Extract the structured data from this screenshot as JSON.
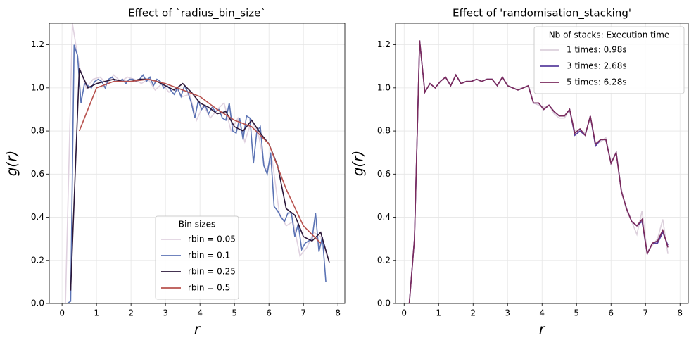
{
  "chart_data": [
    {
      "type": "line",
      "title": "Effect of `radius_bin_size`",
      "xlabel": "r",
      "ylabel": "g(r)",
      "xlim": [
        -0.37,
        8.2
      ],
      "ylim": [
        0,
        1.3
      ],
      "xticks": [
        0,
        1,
        2,
        3,
        4,
        5,
        6,
        7,
        8
      ],
      "yticks": [
        {
          "value": 0,
          "label": "0.0"
        },
        0.2,
        0.4,
        0.6,
        0.8,
        {
          "value": 1,
          "label": "1.0"
        },
        1.2
      ],
      "grid": true,
      "legend_title": "Bin sizes",
      "legend_loc": "lower center",
      "series": [
        {
          "name": "rbin = 0.05",
          "color": "#e0d2e0",
          "x": [
            0.1,
            0.3,
            0.5,
            0.7,
            0.9,
            1.1,
            1.3,
            1.5,
            1.7,
            1.9,
            2.1,
            2.3,
            2.5,
            2.7,
            2.9,
            3.1,
            3.3,
            3.5,
            3.7,
            3.9,
            4.1,
            4.3,
            4.5,
            4.7,
            4.9,
            5.1,
            5.3,
            5.5,
            5.7,
            5.9,
            6.1,
            6.3,
            6.5,
            6.7,
            6.9,
            7.1,
            7.3,
            7.5,
            7.7
          ],
          "values": [
            0,
            1.3,
            1.1,
            1.0,
            1.04,
            1.05,
            1.02,
            1.06,
            1.03,
            1.05,
            1.04,
            1.02,
            1.04,
            0.99,
            1.02,
            0.98,
            1.0,
            0.96,
            0.97,
            0.85,
            0.92,
            0.86,
            0.9,
            0.93,
            0.8,
            0.86,
            0.75,
            0.85,
            0.78,
            0.62,
            0.66,
            0.42,
            0.36,
            0.38,
            0.22,
            0.26,
            0.33,
            0.31,
            0.21
          ]
        },
        {
          "name": "rbin = 0.1",
          "color": "#5b73b4",
          "x": [
            0.05,
            0.15,
            0.25,
            0.35,
            0.45,
            0.55,
            0.65,
            0.75,
            0.85,
            0.95,
            1.05,
            1.15,
            1.25,
            1.35,
            1.45,
            1.55,
            1.65,
            1.75,
            1.85,
            1.95,
            2.05,
            2.15,
            2.25,
            2.35,
            2.45,
            2.55,
            2.65,
            2.75,
            2.85,
            2.95,
            3.05,
            3.15,
            3.25,
            3.35,
            3.45,
            3.55,
            3.65,
            3.75,
            3.85,
            3.95,
            4.05,
            4.15,
            4.25,
            4.35,
            4.45,
            4.55,
            4.65,
            4.75,
            4.85,
            4.95,
            5.05,
            5.15,
            5.25,
            5.35,
            5.45,
            5.55,
            5.65,
            5.75,
            5.85,
            5.95,
            6.05,
            6.15,
            6.25,
            6.35,
            6.45,
            6.55,
            6.65,
            6.75,
            6.85,
            6.95,
            7.05,
            7.15,
            7.25,
            7.35,
            7.45,
            7.55,
            7.65
          ],
          "values": [
            0,
            0,
            0.01,
            1.2,
            1.15,
            0.93,
            1.02,
            1.01,
            1.0,
            1.03,
            1.04,
            1.03,
            1.0,
            1.04,
            1.05,
            1.03,
            1.03,
            1.04,
            1.02,
            1.04,
            1.04,
            1.03,
            1.04,
            1.06,
            1.03,
            1.05,
            1.01,
            1.04,
            1.03,
            1.0,
            1.01,
            0.99,
            0.97,
            1.0,
            0.96,
            1.01,
            0.98,
            0.93,
            0.86,
            0.94,
            0.9,
            0.92,
            0.88,
            0.91,
            0.89,
            0.9,
            0.86,
            0.85,
            0.93,
            0.8,
            0.79,
            0.86,
            0.76,
            0.87,
            0.86,
            0.65,
            0.8,
            0.82,
            0.64,
            0.6,
            0.7,
            0.45,
            0.43,
            0.4,
            0.38,
            0.42,
            0.42,
            0.31,
            0.37,
            0.25,
            0.28,
            0.29,
            0.3,
            0.42,
            0.24,
            0.31,
            0.1
          ]
        },
        {
          "name": "rbin = 0.25",
          "color": "#2a1638",
          "x": [
            0.25,
            0.5,
            0.75,
            1.0,
            1.25,
            1.5,
            1.75,
            2.0,
            2.25,
            2.5,
            2.75,
            3.0,
            3.25,
            3.5,
            3.75,
            4.0,
            4.25,
            4.5,
            4.75,
            5.0,
            5.25,
            5.5,
            5.75,
            6.0,
            6.25,
            6.5,
            6.75,
            7.0,
            7.25,
            7.5,
            7.75
          ],
          "values": [
            0.06,
            1.09,
            1.0,
            1.02,
            1.03,
            1.04,
            1.03,
            1.03,
            1.04,
            1.04,
            1.03,
            1.01,
            0.99,
            1.02,
            0.98,
            0.93,
            0.91,
            0.88,
            0.89,
            0.82,
            0.8,
            0.85,
            0.79,
            0.74,
            0.64,
            0.44,
            0.41,
            0.31,
            0.29,
            0.33,
            0.19
          ]
        },
        {
          "name": "rbin = 0.5",
          "color": "#b8524e",
          "x": [
            0.5,
            1.0,
            1.5,
            2.0,
            2.5,
            3.0,
            3.5,
            4.0,
            4.5,
            5.0,
            5.5,
            6.0,
            6.5,
            7.0,
            7.5
          ],
          "values": [
            0.8,
            1.0,
            1.03,
            1.03,
            1.04,
            1.02,
            0.99,
            0.96,
            0.9,
            0.85,
            0.82,
            0.74,
            0.53,
            0.36,
            0.28
          ]
        }
      ]
    },
    {
      "type": "line",
      "title": "Effect of 'randomisation_stacking'",
      "xlabel": "r",
      "ylabel": "g(r)",
      "xlim": [
        -0.25,
        8.24
      ],
      "ylim": [
        0,
        1.3
      ],
      "xticks": [
        0,
        1,
        2,
        3,
        4,
        5,
        6,
        7,
        8
      ],
      "yticks": [
        {
          "value": 0,
          "label": "0.0"
        },
        0.2,
        0.4,
        0.6,
        0.8,
        {
          "value": 1,
          "label": "1.0"
        },
        1.2
      ],
      "grid": true,
      "legend_title": "Nb of stacks: Execution time",
      "legend_loc": "upper right",
      "series": [
        {
          "name": "1 times: 0.98s",
          "color": "#dcd0dc",
          "x": [
            0.15,
            0.3,
            0.45,
            0.6,
            0.75,
            0.9,
            1.05,
            1.2,
            1.35,
            1.5,
            1.65,
            1.8,
            1.95,
            2.1,
            2.25,
            2.4,
            2.55,
            2.7,
            2.85,
            3.0,
            3.15,
            3.3,
            3.45,
            3.6,
            3.75,
            3.9,
            4.05,
            4.2,
            4.35,
            4.5,
            4.65,
            4.8,
            4.95,
            5.1,
            5.25,
            5.4,
            5.55,
            5.7,
            5.85,
            6.0,
            6.15,
            6.3,
            6.45,
            6.6,
            6.75,
            6.9,
            7.05,
            7.2,
            7.35,
            7.5,
            7.65
          ],
          "values": [
            0,
            0.3,
            1.22,
            0.98,
            1.02,
            1.0,
            1.03,
            1.05,
            1.01,
            1.06,
            1.02,
            1.03,
            1.03,
            1.04,
            1.03,
            1.04,
            1.04,
            1.01,
            1.05,
            1.01,
            1.0,
            0.99,
            1.0,
            1.01,
            0.93,
            0.92,
            0.91,
            0.92,
            0.88,
            0.86,
            0.86,
            0.9,
            0.8,
            0.8,
            0.79,
            0.86,
            0.74,
            0.75,
            0.77,
            0.65,
            0.7,
            0.53,
            0.43,
            0.38,
            0.32,
            0.43,
            0.24,
            0.27,
            0.3,
            0.39,
            0.23
          ]
        },
        {
          "name": "3 times: 2.68s",
          "color": "#5a3f9e",
          "x": [
            0.15,
            0.3,
            0.45,
            0.6,
            0.75,
            0.9,
            1.05,
            1.2,
            1.35,
            1.5,
            1.65,
            1.8,
            1.95,
            2.1,
            2.25,
            2.4,
            2.55,
            2.7,
            2.85,
            3.0,
            3.15,
            3.3,
            3.45,
            3.6,
            3.75,
            3.9,
            4.05,
            4.2,
            4.35,
            4.5,
            4.65,
            4.8,
            4.95,
            5.1,
            5.25,
            5.4,
            5.55,
            5.7,
            5.85,
            6.0,
            6.15,
            6.3,
            6.45,
            6.6,
            6.75,
            6.9,
            7.05,
            7.2,
            7.35,
            7.5,
            7.65
          ],
          "values": [
            0,
            0.3,
            1.22,
            0.98,
            1.02,
            1.0,
            1.03,
            1.05,
            1.01,
            1.06,
            1.02,
            1.03,
            1.03,
            1.04,
            1.03,
            1.04,
            1.04,
            1.01,
            1.05,
            1.01,
            1.0,
            0.99,
            1.0,
            1.01,
            0.93,
            0.93,
            0.9,
            0.92,
            0.89,
            0.87,
            0.87,
            0.9,
            0.78,
            0.8,
            0.78,
            0.87,
            0.73,
            0.76,
            0.76,
            0.65,
            0.7,
            0.52,
            0.44,
            0.38,
            0.36,
            0.38,
            0.23,
            0.28,
            0.28,
            0.33,
            0.27
          ]
        },
        {
          "name": "5 times: 6.28s",
          "color": "#7a2a5c",
          "x": [
            0.15,
            0.3,
            0.45,
            0.6,
            0.75,
            0.9,
            1.05,
            1.2,
            1.35,
            1.5,
            1.65,
            1.8,
            1.95,
            2.1,
            2.25,
            2.4,
            2.55,
            2.7,
            2.85,
            3.0,
            3.15,
            3.3,
            3.45,
            3.6,
            3.75,
            3.9,
            4.05,
            4.2,
            4.35,
            4.5,
            4.65,
            4.8,
            4.95,
            5.1,
            5.25,
            5.4,
            5.55,
            5.7,
            5.85,
            6.0,
            6.15,
            6.3,
            6.45,
            6.6,
            6.75,
            6.9,
            7.05,
            7.2,
            7.35,
            7.5,
            7.65
          ],
          "values": [
            0,
            0.3,
            1.22,
            0.98,
            1.02,
            1.0,
            1.03,
            1.05,
            1.01,
            1.06,
            1.02,
            1.03,
            1.03,
            1.04,
            1.03,
            1.04,
            1.04,
            1.01,
            1.05,
            1.01,
            1.0,
            0.99,
            1.0,
            1.01,
            0.93,
            0.93,
            0.9,
            0.92,
            0.89,
            0.87,
            0.87,
            0.9,
            0.79,
            0.81,
            0.78,
            0.87,
            0.74,
            0.76,
            0.76,
            0.65,
            0.7,
            0.52,
            0.44,
            0.38,
            0.36,
            0.39,
            0.23,
            0.28,
            0.29,
            0.34,
            0.26
          ]
        }
      ]
    }
  ]
}
